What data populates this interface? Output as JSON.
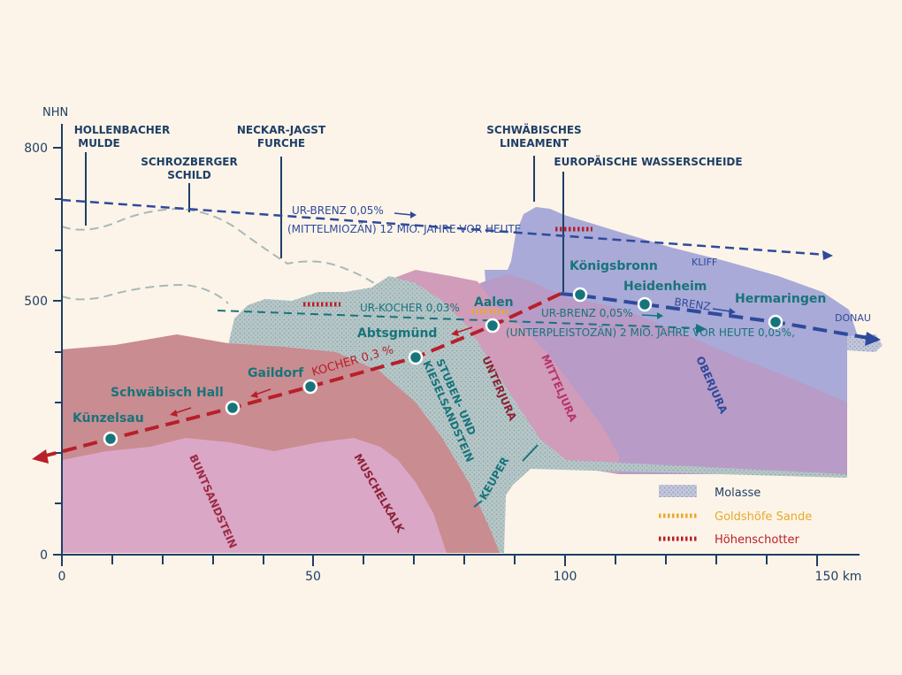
{
  "colors": {
    "background": "#fcf4e8",
    "axis": "#1f3f66",
    "teal": "#17747b",
    "red": "#b81f2a",
    "navy": "#2e4a9c",
    "gold": "#e9a92b",
    "buntsandstein": "#d9a6c4",
    "muschelkalk": "#c98b8f",
    "keuper": "#b9c9c9",
    "unterjura": "#cf9cb8",
    "mitteljura": "#b79ac5",
    "oberjura": "#a7a8d6"
  },
  "axes": {
    "y_unit": "NHN",
    "y_ticks": [
      "800",
      "500",
      "0"
    ],
    "x_ticks": [
      "0",
      "50",
      "100",
      "150 km"
    ]
  },
  "features": {
    "hollenbacher": [
      "HOLLENBACHER",
      "MULDE"
    ],
    "schrozberger": [
      "SCHROZBERGER",
      "SCHILD"
    ],
    "neckar": [
      "NECKAR-JAGST",
      "FURCHE"
    ],
    "lineament": [
      "SCHWÄBISCHES",
      "LINEAMENT"
    ],
    "wasserscheide": "EUROPÄISCHE WASSERSCHEIDE",
    "kliff": "KLIFF"
  },
  "rivers": {
    "ur_brenz_1": [
      "UR-BRENZ 0,05%",
      "(MITTELMIOZÄN) 12 MIO. JAHRE VOR HEUTE"
    ],
    "ur_kocher": "UR-KOCHER 0,03%",
    "ur_brenz_2": [
      "UR-BRENZ 0,05%",
      "(UNTERPLEISTOZÄN) 2 MIO. JAHRE VOR HEUTE 0,05%,"
    ],
    "kocher": "KOCHER 0,3 %",
    "brenz": "BRENZ",
    "donau": "DONAU"
  },
  "layers": {
    "buntsandstein": "BUNTSANDSTEIN",
    "muschelkalk": "MUSCHELKALK",
    "keuper": "KEUPER",
    "stuben": [
      "STUBEN- UND",
      "KIESELSANDSTEIN"
    ],
    "unterjura": "UNTERJURA",
    "mitteljura": "MITTELJURA",
    "oberjura": "OBERJURA"
  },
  "places": [
    "Künzelsau",
    "Schwäbisch Hall",
    "Gaildorf",
    "Abtsgmünd",
    "Aalen",
    "Königsbronn",
    "Heidenheim",
    "Hermaringen"
  ],
  "legend": [
    "Molasse",
    "Goldshöfe Sande",
    "Höhenschotter"
  ]
}
